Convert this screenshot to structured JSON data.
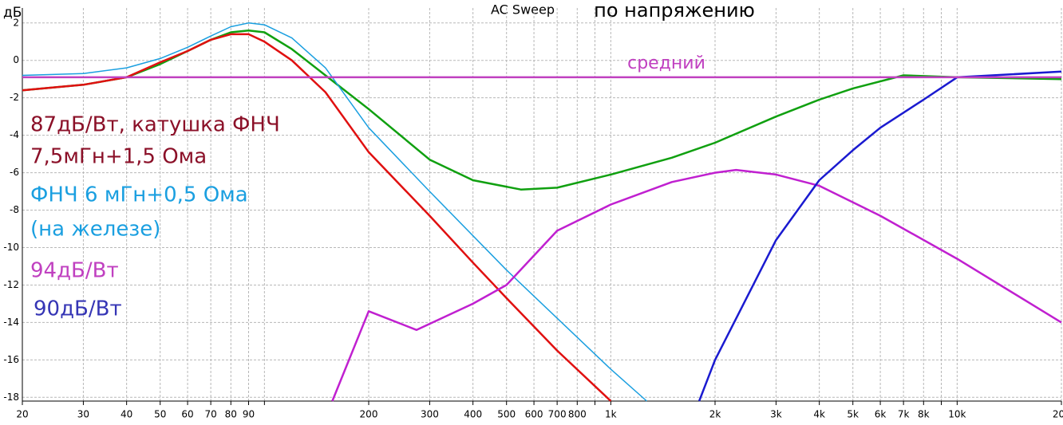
{
  "chart_data": {
    "type": "line",
    "title": "AC Sweep",
    "subtitle": "по напряжению",
    "y_label": "дБ",
    "log_x": true,
    "grid": true,
    "xlim": [
      20,
      20000
    ],
    "ylim": [
      -18.2,
      2.8
    ],
    "xticks": [
      20,
      30,
      40,
      50,
      60,
      70,
      80,
      90,
      {
        "value": 100,
        "label": null
      },
      200,
      300,
      400,
      500,
      600,
      700,
      800,
      {
        "value": 900,
        "label": null
      },
      {
        "value": 1000,
        "label": "1k"
      },
      {
        "value": 2000,
        "label": "2k"
      },
      {
        "value": 3000,
        "label": "3k"
      },
      {
        "value": 4000,
        "label": "4k"
      },
      {
        "value": 5000,
        "label": "5k"
      },
      {
        "value": 6000,
        "label": "6k"
      },
      {
        "value": 7000,
        "label": "7k"
      },
      {
        "value": 8000,
        "label": "8k"
      },
      {
        "value": 9000,
        "label": null
      },
      {
        "value": 10000,
        "label": "10k"
      },
      {
        "value": 20000,
        "label": "20k"
      }
    ],
    "yticks": [
      2,
      0,
      -2,
      -4,
      -6,
      -8,
      -10,
      -12,
      -14,
      -16,
      -18
    ],
    "series": [
      {
        "color": "#10a010",
        "x": [
          20,
          30,
          40,
          50,
          60,
          70,
          80,
          90,
          100,
          120,
          150,
          200,
          300,
          400,
          550,
          700,
          1000,
          1500,
          2000,
          3000,
          4000,
          5000,
          7000,
          10000,
          20000
        ],
        "values": [
          -1.6,
          -1.3,
          -0.9,
          -0.2,
          0.5,
          1.1,
          1.5,
          1.6,
          1.5,
          0.6,
          -0.8,
          -2.6,
          -5.3,
          -6.4,
          -6.9,
          -6.8,
          -6.1,
          -5.2,
          -4.4,
          -3.0,
          -2.1,
          -1.5,
          -0.8,
          -0.9,
          -1.0
        ]
      },
      {
        "color": "#e01010",
        "x": [
          20,
          30,
          40,
          50,
          60,
          70,
          80,
          90,
          100,
          120,
          150,
          200,
          300,
          400,
          500,
          700,
          1000
        ],
        "values": [
          -1.6,
          -1.3,
          -0.9,
          -0.1,
          0.5,
          1.1,
          1.4,
          1.4,
          1.0,
          0.0,
          -1.7,
          -4.9,
          -8.3,
          -10.8,
          -12.7,
          -15.5,
          -18.2
        ]
      },
      {
        "color": "#1a9fe0",
        "x": [
          20,
          30,
          40,
          50,
          60,
          70,
          80,
          90,
          100,
          120,
          150,
          200,
          300,
          500,
          1000,
          1270
        ],
        "values": [
          -0.8,
          -0.7,
          -0.4,
          0.1,
          0.7,
          1.3,
          1.8,
          2.0,
          1.9,
          1.2,
          -0.4,
          -3.6,
          -7.0,
          -11.2,
          -16.5,
          -18.2
        ]
      },
      {
        "color": "#c020d0",
        "x": [
          157,
          200,
          275,
          400,
          500,
          700,
          1000,
          1500,
          2000,
          2300,
          3000,
          4000,
          6000,
          10000,
          20000
        ],
        "values": [
          -18.2,
          -13.4,
          -14.4,
          -13.0,
          -12.0,
          -9.1,
          -7.7,
          -6.5,
          -6.0,
          -5.85,
          -6.1,
          -6.7,
          -8.3,
          -10.6,
          -14.0
        ]
      },
      {
        "color": "#1a1ad0",
        "x": [
          1800,
          2000,
          3000,
          4000,
          5000,
          6000,
          8000,
          10000,
          20000
        ],
        "values": [
          -18.2,
          -16.0,
          -9.6,
          -6.4,
          -4.8,
          -3.6,
          -2.1,
          -0.9,
          -0.6
        ]
      },
      {
        "color": "#c040c0",
        "x": [
          20,
          20000
        ],
        "values": [
          -0.9,
          -0.9
        ]
      }
    ],
    "annotations": [
      {
        "text": "средний",
        "color": "#c040c0"
      },
      {
        "text": "87дБ/Вт, катушка ФНЧ",
        "color": "#8b1028"
      },
      {
        "text": "7,5мГн+1,5 Ома",
        "color": "#8b1028"
      },
      {
        "text": "ФНЧ 6 мГн+0,5 Ома",
        "color": "#1a9fe0"
      },
      {
        "text": "(на железе)",
        "color": "#1a9fe0"
      },
      {
        "text": "94дБ/Вт",
        "color": "#c040c0"
      },
      {
        "text": "90дБ/Вт",
        "color": "#3535b5"
      }
    ]
  }
}
